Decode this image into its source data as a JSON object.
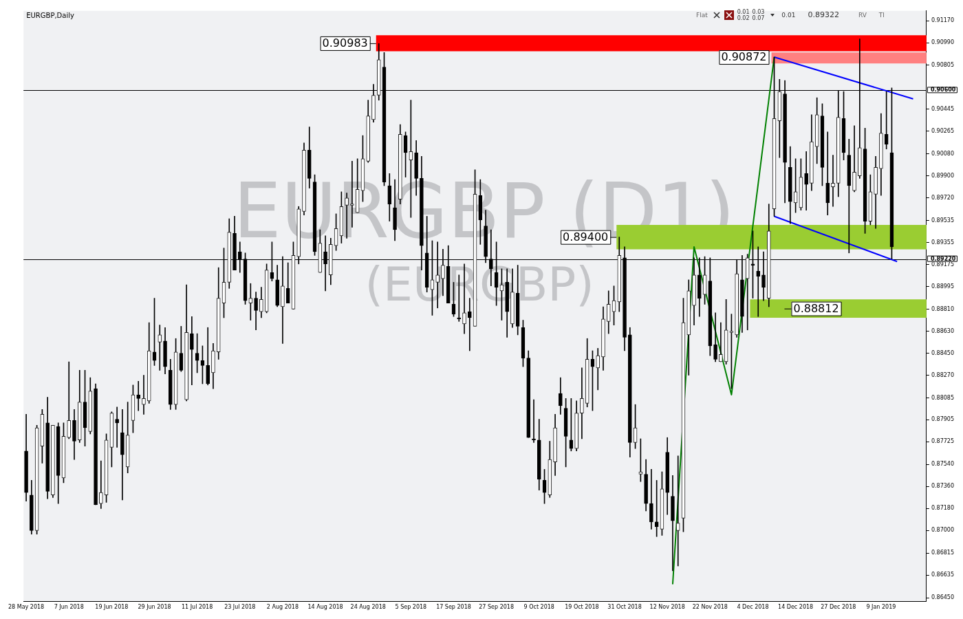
{
  "chart_data": {
    "type": "candlestick",
    "title": "EURGBP,Daily",
    "categories": [
      "28 May 2018",
      null,
      null,
      null,
      null,
      null,
      null,
      null,
      "7 Jun 2018",
      null,
      null,
      null,
      null,
      null,
      null,
      null,
      "19 Jun 2018",
      null,
      null,
      null,
      null,
      null,
      null,
      null,
      "29 Jun 2018",
      null,
      null,
      null,
      null,
      null,
      null,
      null,
      "11 Jul 2018",
      null,
      null,
      null,
      null,
      null,
      null,
      null,
      "23 Jul 2018",
      null,
      null,
      null,
      null,
      null,
      null,
      null,
      "2 Aug 2018",
      null,
      null,
      null,
      null,
      null,
      null,
      null,
      "14 Aug 2018",
      null,
      null,
      null,
      null,
      null,
      null,
      null,
      "24 Aug 2018",
      null,
      null,
      null,
      null,
      null,
      null,
      null,
      "5 Sep 2018",
      null,
      null,
      null,
      null,
      null,
      null,
      null,
      "17 Sep 2018",
      null,
      null,
      null,
      null,
      null,
      null,
      null,
      "27 Sep 2018",
      null,
      null,
      null,
      null,
      null,
      null,
      null,
      "9 Oct 2018",
      null,
      null,
      null,
      null,
      null,
      null,
      null,
      "19 Oct 2018",
      null,
      null,
      null,
      null,
      null,
      null,
      null,
      "31 Oct 2018",
      null,
      null,
      null,
      null,
      null,
      null,
      null,
      "12 Nov 2018",
      null,
      null,
      null,
      null,
      null,
      null,
      null,
      "22 Nov 2018",
      null,
      null,
      null,
      null,
      null,
      null,
      null,
      "4 Dec 2018",
      null,
      null,
      null,
      null,
      null,
      null,
      null,
      "14 Dec 2018",
      null,
      null,
      null,
      null,
      null,
      null,
      null,
      "27 Dec 2018",
      null,
      null,
      null,
      null,
      null,
      null,
      null,
      "9 Jan 2019",
      null,
      null,
      null,
      null,
      null,
      null,
      null,
      null
    ],
    "ohlc": [
      [
        0.8765,
        0.8795,
        0.8724,
        0.8731
      ],
      [
        0.8729,
        0.8741,
        0.8697,
        0.87
      ],
      [
        0.87,
        0.8786,
        0.8697,
        0.8784
      ],
      [
        0.8769,
        0.8799,
        0.8755,
        0.8795
      ],
      [
        0.8788,
        0.8809,
        0.8726,
        0.8732
      ],
      [
        0.8729,
        0.8786,
        0.8727,
        0.8786
      ],
      [
        0.8785,
        0.8788,
        0.8722,
        0.8745
      ],
      [
        0.8743,
        0.8788,
        0.8739,
        0.8777
      ],
      [
        0.8776,
        0.8838,
        0.8775,
        0.879
      ],
      [
        0.879,
        0.8799,
        0.8758,
        0.8773
      ],
      [
        0.8774,
        0.8831,
        0.8772,
        0.8805
      ],
      [
        0.8805,
        0.8831,
        0.8769,
        0.8784
      ],
      [
        0.8781,
        0.8825,
        0.8779,
        0.8814
      ],
      [
        0.8816,
        0.882,
        0.8721,
        0.8721
      ],
      [
        0.8722,
        0.8757,
        0.8718,
        0.8731
      ],
      [
        0.8729,
        0.8779,
        0.8723,
        0.8774
      ],
      [
        0.8768,
        0.8797,
        0.8752,
        0.8796
      ],
      [
        0.8791,
        0.8801,
        0.8768,
        0.8788
      ],
      [
        0.878,
        0.8799,
        0.8725,
        0.8762
      ],
      [
        0.8752,
        0.8805,
        0.8747,
        0.8778
      ],
      [
        0.879,
        0.8819,
        0.878,
        0.8811
      ],
      [
        0.8811,
        0.8822,
        0.8798,
        0.8808
      ],
      [
        0.8803,
        0.8827,
        0.8795,
        0.8808
      ],
      [
        0.8806,
        0.887,
        0.8804,
        0.8847
      ],
      [
        0.8846,
        0.889,
        0.8835,
        0.8839
      ],
      [
        0.8854,
        0.8868,
        0.8831,
        0.886
      ],
      [
        0.8855,
        0.8866,
        0.8828,
        0.8834
      ],
      [
        0.8831,
        0.884,
        0.8799,
        0.8803
      ],
      [
        0.8803,
        0.8857,
        0.8799,
        0.8846
      ],
      [
        0.8845,
        0.8867,
        0.883,
        0.8831
      ],
      [
        0.8807,
        0.8901,
        0.8806,
        0.8862
      ],
      [
        0.8861,
        0.8875,
        0.8819,
        0.8848
      ],
      [
        0.8845,
        0.8861,
        0.8829,
        0.8839
      ],
      [
        0.8839,
        0.8851,
        0.882,
        0.8835
      ],
      [
        0.8835,
        0.8866,
        0.8819,
        0.882
      ],
      [
        0.8829,
        0.8853,
        0.8816,
        0.8847
      ],
      [
        0.8846,
        0.8915,
        0.884,
        0.889
      ],
      [
        0.8886,
        0.8931,
        0.8874,
        0.8903
      ],
      [
        0.8903,
        0.8955,
        0.8898,
        0.8944
      ],
      [
        0.8943,
        0.8957,
        0.8913,
        0.8913
      ],
      [
        0.8928,
        0.8936,
        0.8911,
        0.8922
      ],
      [
        0.8922,
        0.8927,
        0.8885,
        0.8888
      ],
      [
        0.8886,
        0.8902,
        0.8872,
        0.889
      ],
      [
        0.889,
        0.8895,
        0.8864,
        0.888
      ],
      [
        0.8879,
        0.8899,
        0.8874,
        0.8889
      ],
      [
        0.8879,
        0.8918,
        0.8878,
        0.8913
      ],
      [
        0.8911,
        0.8936,
        0.8904,
        0.8906
      ],
      [
        0.8905,
        0.8917,
        0.8883,
        0.8884
      ],
      [
        0.8883,
        0.8924,
        0.8853,
        0.89
      ],
      [
        0.8898,
        0.8919,
        0.8886,
        0.8886
      ],
      [
        0.8881,
        0.8936,
        0.8881,
        0.8925
      ],
      [
        0.8924,
        0.8965,
        0.8918,
        0.8963
      ],
      [
        0.8961,
        0.9017,
        0.8958,
        0.9011
      ],
      [
        0.9011,
        0.903,
        0.898,
        0.8988
      ],
      [
        0.8985,
        0.8991,
        0.8925,
        0.8928
      ],
      [
        0.8911,
        0.8946,
        0.8911,
        0.8935
      ],
      [
        0.8928,
        0.8941,
        0.8896,
        0.8918
      ],
      [
        0.8909,
        0.8939,
        0.8901,
        0.8934
      ],
      [
        0.8933,
        0.8959,
        0.8929,
        0.8947
      ],
      [
        0.8941,
        0.8977,
        0.8935,
        0.8965
      ],
      [
        0.8966,
        0.8976,
        0.8939,
        0.8972
      ],
      [
        0.8966,
        0.9002,
        0.8948,
        0.8967
      ],
      [
        0.896,
        0.9004,
        0.896,
        0.8979
      ],
      [
        0.8978,
        0.9023,
        0.8969,
        0.9004
      ],
      [
        0.9002,
        0.9052,
        0.9001,
        0.9039
      ],
      [
        0.9036,
        0.9065,
        0.9034,
        0.9056
      ],
      [
        0.9056,
        0.90983,
        0.9052,
        0.9085
      ],
      [
        0.9079,
        0.9091,
        0.8982,
        0.8985
      ],
      [
        0.8982,
        0.8992,
        0.8953,
        0.8967
      ],
      [
        0.8964,
        0.8987,
        0.8937,
        0.8946
      ],
      [
        0.8971,
        0.9032,
        0.8967,
        0.9024
      ],
      [
        0.9023,
        0.9026,
        0.8989,
        0.9009
      ],
      [
        0.9003,
        0.9052,
        0.8956,
        0.901
      ],
      [
        0.9009,
        0.9019,
        0.8974,
        0.8988
      ],
      [
        0.8988,
        0.9006,
        0.8913,
        0.8933
      ],
      [
        0.8927,
        0.8957,
        0.8895,
        0.8899
      ],
      [
        0.8897,
        0.8937,
        0.8876,
        0.8905
      ],
      [
        0.8903,
        0.8936,
        0.8882,
        0.8909
      ],
      [
        0.8906,
        0.893,
        0.8892,
        0.8917
      ],
      [
        0.8916,
        0.8933,
        0.8886,
        0.8886
      ],
      [
        0.8885,
        0.8903,
        0.8875,
        0.8877
      ],
      [
        0.8874,
        0.8909,
        0.8871,
        0.8873
      ],
      [
        0.8869,
        0.8918,
        0.8861,
        0.8878
      ],
      [
        0.8879,
        0.889,
        0.8847,
        0.8874
      ],
      [
        0.8867,
        0.8995,
        0.8867,
        0.8975
      ],
      [
        0.8974,
        0.8987,
        0.8934,
        0.8954
      ],
      [
        0.8949,
        0.8962,
        0.8919,
        0.8924
      ],
      [
        0.8922,
        0.8946,
        0.89,
        0.8914
      ],
      [
        0.8911,
        0.8936,
        0.8884,
        0.8899
      ],
      [
        0.8896,
        0.8914,
        0.8872,
        0.8901
      ],
      [
        0.8903,
        0.8914,
        0.8858,
        0.8879
      ],
      [
        0.8869,
        0.8914,
        0.8866,
        0.8895
      ],
      [
        0.8894,
        0.8917,
        0.886,
        0.8867
      ],
      [
        0.8866,
        0.8872,
        0.8834,
        0.8841
      ],
      [
        0.8841,
        0.8847,
        0.8776,
        0.8776
      ],
      [
        0.8775,
        0.8807,
        0.8772,
        0.8774
      ],
      [
        0.8774,
        0.8791,
        0.8733,
        0.8742
      ],
      [
        0.8741,
        0.875,
        0.8722,
        0.8731
      ],
      [
        0.8729,
        0.8773,
        0.8727,
        0.8758
      ],
      [
        0.8756,
        0.8795,
        0.8745,
        0.8784
      ],
      [
        0.8812,
        0.8825,
        0.8795,
        0.8802
      ],
      [
        0.88,
        0.8808,
        0.8752,
        0.8777
      ],
      [
        0.8774,
        0.8808,
        0.8765,
        0.8767
      ],
      [
        0.8767,
        0.8806,
        0.8765,
        0.8796
      ],
      [
        0.8796,
        0.8833,
        0.8775,
        0.8808
      ],
      [
        0.8804,
        0.8857,
        0.8801,
        0.884
      ],
      [
        0.884,
        0.8847,
        0.8798,
        0.8834
      ],
      [
        0.8833,
        0.8849,
        0.8815,
        0.8843
      ],
      [
        0.8842,
        0.8883,
        0.8831,
        0.8873
      ],
      [
        0.8871,
        0.8896,
        0.8861,
        0.8885
      ],
      [
        0.8879,
        0.89,
        0.8868,
        0.8888
      ],
      [
        0.8887,
        0.894,
        0.8879,
        0.8925
      ],
      [
        0.8923,
        0.8932,
        0.8847,
        0.8858
      ],
      [
        0.886,
        0.8866,
        0.876,
        0.8772
      ],
      [
        0.8772,
        0.8803,
        0.8767,
        0.8784
      ],
      [
        0.8746,
        0.8775,
        0.874,
        0.8748
      ],
      [
        0.8746,
        0.8758,
        0.8716,
        0.8722
      ],
      [
        0.8722,
        0.875,
        0.8701,
        0.8707
      ],
      [
        0.8707,
        0.8741,
        0.8695,
        0.8703
      ],
      [
        0.8701,
        0.8748,
        0.8696,
        0.8734
      ],
      [
        0.8764,
        0.8776,
        0.8713,
        0.8731
      ],
      [
        0.8728,
        0.8745,
        0.8667,
        0.8708
      ],
      [
        0.87,
        0.8761,
        0.8671,
        0.8706
      ],
      [
        0.871,
        0.889,
        0.8699,
        0.887
      ],
      [
        0.886,
        0.8905,
        0.8827,
        0.8896
      ],
      [
        0.8884,
        0.8923,
        0.8868,
        0.8909
      ],
      [
        0.8909,
        0.8923,
        0.8875,
        0.889
      ],
      [
        0.8893,
        0.8924,
        0.8885,
        0.8909
      ],
      [
        0.8904,
        0.8923,
        0.8843,
        0.8851
      ],
      [
        0.8852,
        0.8878,
        0.8838,
        0.884
      ],
      [
        0.8838,
        0.887,
        0.8838,
        0.8844
      ],
      [
        0.8838,
        0.8889,
        0.8836,
        0.8864
      ],
      [
        0.8862,
        0.8877,
        0.8816,
        0.8863
      ],
      [
        0.886,
        0.8921,
        0.8858,
        0.891
      ],
      [
        0.8905,
        0.8925,
        0.8862,
        0.8875
      ],
      [
        0.8906,
        0.8926,
        0.8864,
        0.8923
      ],
      [
        0.8918,
        0.8945,
        0.889,
        0.8917
      ],
      [
        0.8912,
        0.8932,
        0.8875,
        0.8908
      ],
      [
        0.8909,
        0.8928,
        0.8888,
        0.8899
      ],
      [
        0.889,
        0.8967,
        0.8883,
        0.8945
      ],
      [
        0.8963,
        0.90872,
        0.8957,
        0.9037
      ],
      [
        0.9035,
        0.9069,
        0.9005,
        0.9059
      ],
      [
        0.9057,
        0.9068,
        0.8968,
        0.9001
      ],
      [
        0.8997,
        0.9014,
        0.8951,
        0.8969
      ],
      [
        0.8968,
        0.9004,
        0.896,
        0.8977
      ],
      [
        0.8964,
        0.9004,
        0.8962,
        0.8989
      ],
      [
        0.8992,
        0.901,
        0.8962,
        0.8983
      ],
      [
        0.8984,
        0.904,
        0.8978,
        0.9018
      ],
      [
        0.9014,
        0.9054,
        0.9,
        0.904
      ],
      [
        0.9039,
        0.9049,
        0.8982,
        0.8997
      ],
      [
        0.8984,
        0.9026,
        0.8958,
        0.8968
      ],
      [
        0.8981,
        0.9007,
        0.8965,
        0.8984
      ],
      [
        0.8984,
        0.906,
        0.8973,
        0.9038
      ],
      [
        0.9037,
        0.9059,
        0.9003,
        0.9009
      ],
      [
        0.9007,
        0.902,
        0.8927,
        0.8982
      ],
      [
        0.8978,
        0.9031,
        0.8977,
        0.8993
      ],
      [
        0.899,
        0.9102,
        0.8988,
        0.9013
      ],
      [
        0.9012,
        0.9029,
        0.8943,
        0.8953
      ],
      [
        0.8953,
        0.8991,
        0.895,
        0.8977
      ],
      [
        0.8975,
        0.9006,
        0.8947,
        0.8997
      ],
      [
        0.8996,
        0.9041,
        0.8974,
        0.9025
      ],
      [
        0.9024,
        0.9059,
        0.9012,
        0.9016
      ],
      [
        0.9009,
        0.9062,
        0.8922,
        0.8932
      ],
      null,
      null,
      null,
      null,
      null,
      null
    ],
    "series": [
      {
        "type": "line",
        "color": "#008000",
        "values": [
          null,
          null,
          null,
          null,
          null,
          null,
          null,
          null,
          null,
          null,
          null,
          null,
          null,
          null,
          null,
          null,
          null,
          null,
          null,
          null,
          null,
          null,
          null,
          null,
          null,
          null,
          null,
          null,
          null,
          null,
          null,
          null,
          null,
          null,
          null,
          null,
          null,
          null,
          null,
          null,
          null,
          null,
          null,
          null,
          null,
          null,
          null,
          null,
          null,
          null,
          null,
          null,
          null,
          null,
          null,
          null,
          null,
          null,
          null,
          null,
          null,
          null,
          null,
          null,
          null,
          null,
          null,
          null,
          null,
          null,
          null,
          null,
          null,
          null,
          null,
          null,
          null,
          null,
          null,
          null,
          null,
          null,
          null,
          null,
          null,
          null,
          null,
          null,
          null,
          null,
          null,
          null,
          null,
          null,
          null,
          null,
          null,
          null,
          null,
          null,
          null,
          null,
          null,
          null,
          null,
          null,
          null,
          null,
          null,
          null,
          null,
          null,
          null,
          null,
          null,
          null,
          null,
          null,
          null,
          null,
          null,
          0.8656,
          null,
          null,
          null,
          0.8932,
          null,
          null,
          null,
          null,
          null,
          null,
          0.8811,
          null,
          null,
          null,
          null,
          null,
          null,
          null,
          0.90872,
          null,
          null,
          null,
          null,
          null,
          null,
          null,
          null,
          null,
          null,
          null,
          null,
          null,
          null,
          null,
          null,
          null,
          null,
          null,
          null,
          null,
          null,
          null,
          null,
          null,
          null,
          null,
          null
        ]
      },
      {
        "type": "line",
        "color": "#0000ff",
        "values": [
          null,
          null,
          null,
          null,
          null,
          null,
          null,
          null,
          null,
          null,
          null,
          null,
          null,
          null,
          null,
          null,
          null,
          null,
          null,
          null,
          null,
          null,
          null,
          null,
          null,
          null,
          null,
          null,
          null,
          null,
          null,
          null,
          null,
          null,
          null,
          null,
          null,
          null,
          null,
          null,
          null,
          null,
          null,
          null,
          null,
          null,
          null,
          null,
          null,
          null,
          null,
          null,
          null,
          null,
          null,
          null,
          null,
          null,
          null,
          null,
          null,
          null,
          null,
          null,
          null,
          null,
          null,
          null,
          null,
          null,
          null,
          null,
          null,
          null,
          null,
          null,
          null,
          null,
          null,
          null,
          null,
          null,
          null,
          null,
          null,
          null,
          null,
          null,
          null,
          null,
          null,
          null,
          null,
          null,
          null,
          null,
          null,
          null,
          null,
          null,
          null,
          null,
          null,
          null,
          null,
          null,
          null,
          null,
          null,
          null,
          null,
          null,
          null,
          null,
          null,
          null,
          null,
          null,
          null,
          null,
          null,
          null,
          null,
          null,
          null,
          null,
          null,
          null,
          null,
          null,
          null,
          null,
          null,
          null,
          null,
          null,
          null,
          null,
          null,
          null,
          0.90872,
          null,
          null,
          null,
          null,
          null,
          null,
          null,
          null,
          null,
          null,
          null,
          null,
          null,
          null,
          null,
          null,
          null,
          null,
          null,
          null,
          null,
          null,
          null,
          null,
          null,
          0.9053,
          null,
          null
        ]
      },
      {
        "type": "line",
        "color": "#0000ff",
        "values": [
          null,
          null,
          null,
          null,
          null,
          null,
          null,
          null,
          null,
          null,
          null,
          null,
          null,
          null,
          null,
          null,
          null,
          null,
          null,
          null,
          null,
          null,
          null,
          null,
          null,
          null,
          null,
          null,
          null,
          null,
          null,
          null,
          null,
          null,
          null,
          null,
          null,
          null,
          null,
          null,
          null,
          null,
          null,
          null,
          null,
          null,
          null,
          null,
          null,
          null,
          null,
          null,
          null,
          null,
          null,
          null,
          null,
          null,
          null,
          null,
          null,
          null,
          null,
          null,
          null,
          null,
          null,
          null,
          null,
          null,
          null,
          null,
          null,
          null,
          null,
          null,
          null,
          null,
          null,
          null,
          null,
          null,
          null,
          null,
          null,
          null,
          null,
          null,
          null,
          null,
          null,
          null,
          null,
          null,
          null,
          null,
          null,
          null,
          null,
          null,
          null,
          null,
          null,
          null,
          null,
          null,
          null,
          null,
          null,
          null,
          null,
          null,
          null,
          null,
          null,
          null,
          null,
          null,
          null,
          null,
          null,
          null,
          null,
          null,
          null,
          null,
          null,
          null,
          null,
          null,
          null,
          null,
          null,
          null,
          null,
          null,
          null,
          null,
          null,
          null,
          0.8957,
          null,
          null,
          null,
          null,
          null,
          null,
          null,
          null,
          null,
          null,
          null,
          null,
          null,
          null,
          null,
          null,
          null,
          null,
          null,
          null,
          null,
          null,
          0.892,
          null,
          null,
          null,
          null,
          null
        ]
      }
    ],
    "ylim": [
      0.8642,
      0.9125
    ],
    "yticks": [
      {
        "value": 0.8645,
        "label": "0.86450"
      },
      {
        "value": 0.86635,
        "label": "0.86635"
      },
      {
        "value": 0.86815,
        "label": "0.86815"
      },
      {
        "value": 0.87,
        "label": "0.87000"
      },
      {
        "value": 0.8718,
        "label": "0.87180"
      },
      {
        "value": 0.8736,
        "label": "0.87360"
      },
      {
        "value": 0.8754,
        "label": "0.87540"
      },
      {
        "value": 0.87725,
        "label": "0.87725"
      },
      {
        "value": 0.87905,
        "label": "0.87905"
      },
      {
        "value": 0.88085,
        "label": "0.88085"
      },
      {
        "value": 0.8827,
        "label": "0.88270"
      },
      {
        "value": 0.8845,
        "label": "0.88450"
      },
      {
        "value": 0.8863,
        "label": "0.88630"
      },
      {
        "value": 0.8881,
        "label": "0.88810"
      },
      {
        "value": 0.88995,
        "label": "0.88995"
      },
      {
        "value": 0.89175,
        "label": "0.89175"
      },
      {
        "value": 0.89355,
        "label": "0.89355"
      },
      {
        "value": 0.89535,
        "label": "0.89535"
      },
      {
        "value": 0.8972,
        "label": "0.89720"
      },
      {
        "value": 0.899,
        "label": "0.89900"
      },
      {
        "value": 0.9008,
        "label": "0.90080"
      },
      {
        "value": 0.90265,
        "label": "0.90265"
      },
      {
        "value": 0.90445,
        "label": "0.90445"
      },
      {
        "value": 0.90805,
        "label": "0.90805"
      },
      {
        "value": 0.9099,
        "label": "0.90990"
      },
      {
        "value": 0.9117,
        "label": "0.91170"
      }
    ],
    "bands": [
      {
        "axis": "y",
        "from": 0.9092,
        "to": 0.9105,
        "label": "0.90983",
        "color": "#ff0000"
      },
      {
        "axis": "y",
        "from": 0.9082,
        "to": 0.9091,
        "color": "#ff8080"
      },
      {
        "axis": "y",
        "from": 0.893,
        "to": 0.895,
        "label": "0.89400",
        "color": "#9acd32"
      },
      {
        "axis": "y",
        "from": 0.8874,
        "to": 0.8889,
        "label": "0.88812",
        "color": "#9acd32"
      }
    ],
    "ref_lines": [
      {
        "axis": "y",
        "value": 0.906,
        "label": "0.90600",
        "color": "#000000"
      },
      {
        "axis": "y",
        "value": 0.8922,
        "label": "0.89220",
        "color": "#000000"
      }
    ],
    "annotations": [
      "0.90872",
      "EURGBP (D1)",
      "(EURGBP)",
      "Flat",
      "0.01",
      "0.03",
      "0.02",
      "0.07",
      "0.01",
      "0.89322",
      "RV",
      "TI"
    ]
  }
}
